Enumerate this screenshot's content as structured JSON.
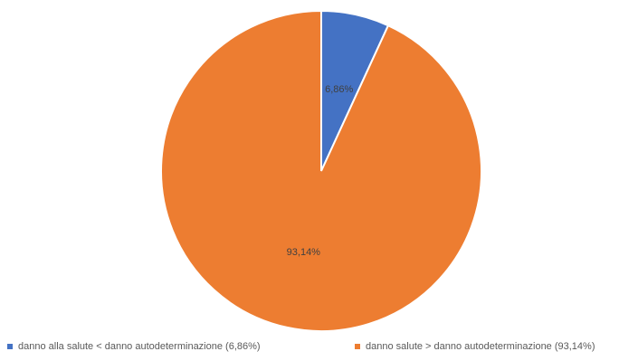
{
  "chart_data": {
    "type": "pie",
    "start_angle_deg": 0,
    "direction": "clockwise",
    "legend_position": "bottom",
    "slices": [
      {
        "label": "danno alla salute < danno autodeterminazione (6,86%)",
        "value": 6.86,
        "data_label": "6,86%",
        "color": "#4472C4"
      },
      {
        "label": "danno salute > danno autodeterminazione (93,14%)",
        "value": 93.14,
        "data_label": "93,14%",
        "color": "#ED7D31"
      }
    ]
  }
}
